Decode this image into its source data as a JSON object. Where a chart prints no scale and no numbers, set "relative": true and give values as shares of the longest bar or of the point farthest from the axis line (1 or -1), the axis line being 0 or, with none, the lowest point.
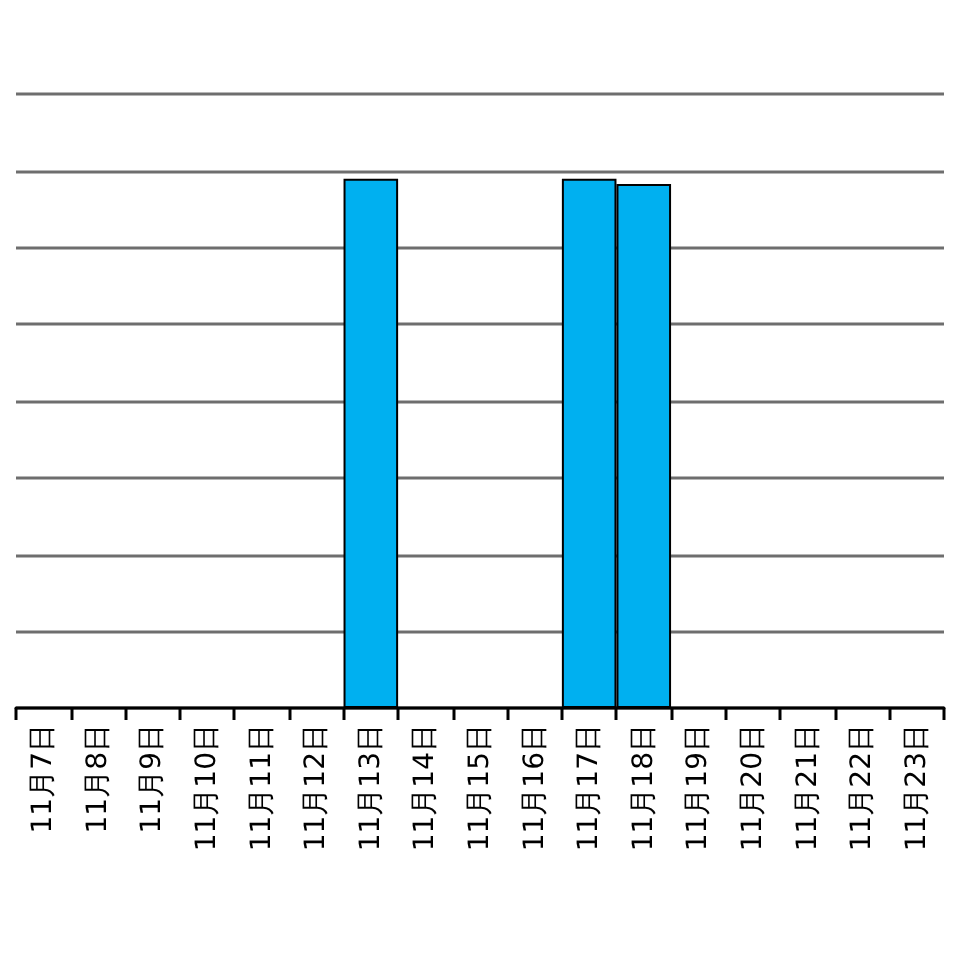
{
  "chart_data": {
    "type": "bar",
    "categories": [
      "11月7日",
      "11月8日",
      "11月9日",
      "11月10日",
      "11月11日",
      "11月12日",
      "11月13日",
      "11月14日",
      "11月15日",
      "11月16日",
      "11月17日",
      "11月18日",
      "11月19日",
      "11月20日",
      "11月21日",
      "11月22日",
      "11月23日"
    ],
    "values": [
      null,
      null,
      null,
      null,
      null,
      null,
      1,
      null,
      null,
      null,
      1,
      0.99,
      null,
      null,
      null,
      null,
      null
    ],
    "color": "#00b0f0",
    "relative": true,
    "grid": "y"
  }
}
